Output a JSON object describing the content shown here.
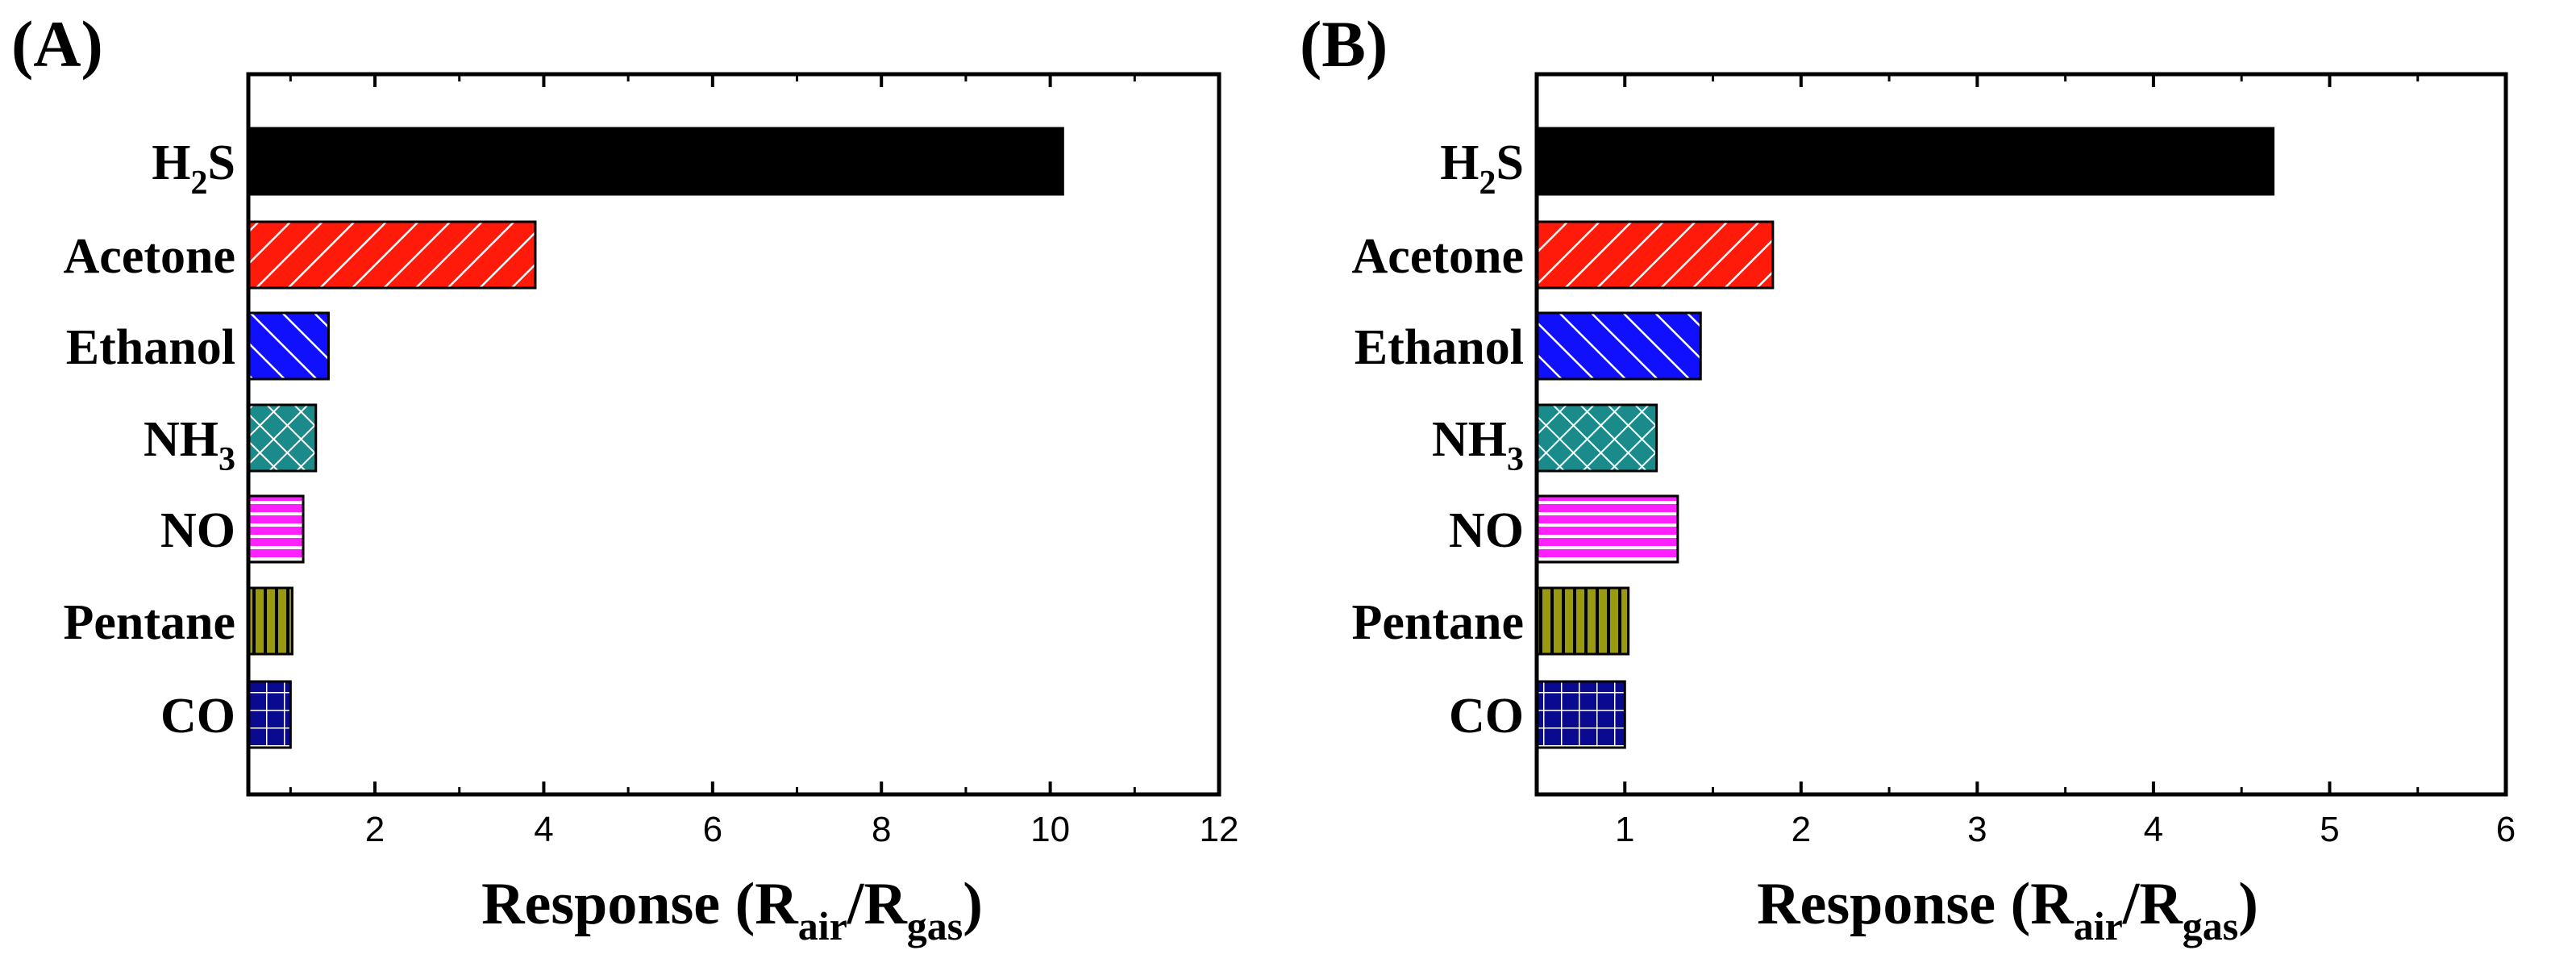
{
  "chart_data": [
    {
      "type": "bar",
      "orientation": "horizontal",
      "panel_label": "(A)",
      "xlabel": "Response (R",
      "xlabel_sub_air": "air",
      "xlabel_slash": "/R",
      "xlabel_sub_gas": "gas",
      "xlabel_close": ")",
      "xlim": [
        0.5,
        12
      ],
      "xticks": [
        2,
        4,
        6,
        8,
        10,
        12
      ],
      "categories": [
        {
          "main": "H",
          "sub": "2",
          "rest": "S"
        },
        {
          "main": "Acetone",
          "sub": "",
          "rest": ""
        },
        {
          "main": "Ethanol",
          "sub": "",
          "rest": ""
        },
        {
          "main": "NH",
          "sub": "3",
          "rest": ""
        },
        {
          "main": "NO",
          "sub": "",
          "rest": ""
        },
        {
          "main": "Pentane",
          "sub": "",
          "rest": ""
        },
        {
          "main": "CO",
          "sub": "",
          "rest": ""
        }
      ],
      "values": [
        10.15,
        3.9,
        1.45,
        1.3,
        1.15,
        1.02,
        1.0
      ]
    },
    {
      "type": "bar",
      "orientation": "horizontal",
      "panel_label": "(B)",
      "xlabel": "Response (R",
      "xlabel_sub_air": "air",
      "xlabel_slash": "/R",
      "xlabel_sub_gas": "gas",
      "xlabel_close": ")",
      "xlim": [
        0.5,
        6
      ],
      "xticks": [
        1,
        2,
        3,
        4,
        5,
        6
      ],
      "categories": [
        {
          "main": "H",
          "sub": "2",
          "rest": "S"
        },
        {
          "main": "Acetone",
          "sub": "",
          "rest": ""
        },
        {
          "main": "Ethanol",
          "sub": "",
          "rest": ""
        },
        {
          "main": "NH",
          "sub": "3",
          "rest": ""
        },
        {
          "main": "NO",
          "sub": "",
          "rest": ""
        },
        {
          "main": "Pentane",
          "sub": "",
          "rest": ""
        },
        {
          "main": "CO",
          "sub": "",
          "rest": ""
        }
      ],
      "values": [
        4.68,
        1.84,
        1.43,
        1.18,
        1.3,
        1.02,
        1.0
      ]
    }
  ],
  "bar_styles": [
    {
      "fill": "#000000",
      "pattern": "solid"
    },
    {
      "fill": "#ff1a0a",
      "pattern": "diag-right"
    },
    {
      "fill": "#1010ff",
      "pattern": "diag-left"
    },
    {
      "fill": "#1a8a8a",
      "pattern": "cross-diag"
    },
    {
      "fill": "#ff20ff",
      "pattern": "horizontal"
    },
    {
      "fill": "#9a9a10",
      "pattern": "vertical"
    },
    {
      "fill": "#0a0a90",
      "pattern": "grid"
    }
  ]
}
